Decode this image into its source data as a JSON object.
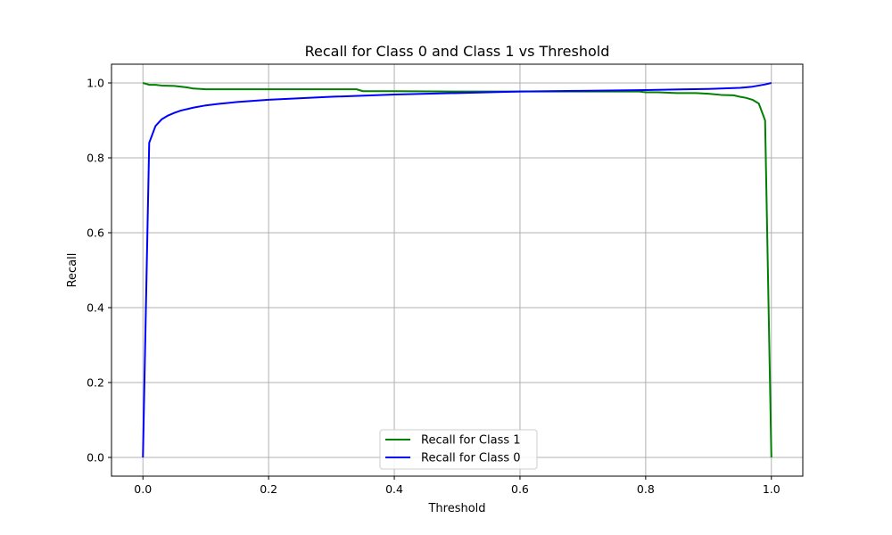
{
  "chart_data": {
    "type": "line",
    "title": "Recall for Class 0 and Class 1 vs Threshold",
    "xlabel": "Threshold",
    "ylabel": "Recall",
    "xlim": [
      -0.05,
      1.05
    ],
    "ylim": [
      -0.05,
      1.05
    ],
    "xticks": [
      0.0,
      0.2,
      0.4,
      0.6,
      0.8,
      1.0
    ],
    "yticks": [
      0.0,
      0.2,
      0.4,
      0.6,
      0.8,
      1.0
    ],
    "xtick_labels": [
      "0.0",
      "0.2",
      "0.4",
      "0.6",
      "0.8",
      "1.0"
    ],
    "ytick_labels": [
      "0.0",
      "0.2",
      "0.4",
      "0.6",
      "0.8",
      "1.0"
    ],
    "grid": true,
    "legend_position": "lower-center",
    "series": [
      {
        "name": "Recall for Class 1",
        "color": "#008000",
        "x": [
          0.0,
          0.01,
          0.02,
          0.03,
          0.05,
          0.07,
          0.08,
          0.1,
          0.15,
          0.2,
          0.25,
          0.3,
          0.34,
          0.35,
          0.4,
          0.5,
          0.6,
          0.7,
          0.79,
          0.8,
          0.82,
          0.85,
          0.88,
          0.9,
          0.92,
          0.94,
          0.95,
          0.96,
          0.97,
          0.98,
          0.99,
          1.0
        ],
        "values": [
          1.0,
          0.995,
          0.995,
          0.993,
          0.992,
          0.988,
          0.985,
          0.983,
          0.983,
          0.983,
          0.983,
          0.983,
          0.983,
          0.978,
          0.978,
          0.977,
          0.977,
          0.977,
          0.977,
          0.975,
          0.975,
          0.973,
          0.973,
          0.971,
          0.968,
          0.967,
          0.963,
          0.96,
          0.955,
          0.945,
          0.9,
          0.0
        ]
      },
      {
        "name": "Recall for Class 0",
        "color": "#0000ff",
        "x": [
          0.0,
          0.01,
          0.02,
          0.03,
          0.04,
          0.05,
          0.06,
          0.08,
          0.1,
          0.12,
          0.15,
          0.2,
          0.3,
          0.4,
          0.5,
          0.6,
          0.7,
          0.8,
          0.9,
          0.95,
          0.97,
          0.98,
          0.99,
          1.0
        ],
        "values": [
          0.0,
          0.84,
          0.885,
          0.903,
          0.913,
          0.92,
          0.926,
          0.934,
          0.94,
          0.944,
          0.949,
          0.955,
          0.963,
          0.969,
          0.973,
          0.977,
          0.979,
          0.981,
          0.984,
          0.987,
          0.99,
          0.993,
          0.996,
          1.0
        ]
      }
    ]
  }
}
